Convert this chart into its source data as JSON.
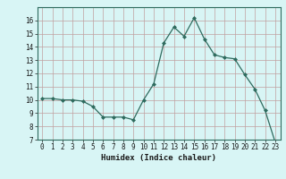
{
  "x": [
    0,
    1,
    2,
    3,
    4,
    5,
    6,
    7,
    8,
    9,
    10,
    11,
    12,
    13,
    14,
    15,
    16,
    17,
    18,
    19,
    20,
    21,
    22,
    23
  ],
  "y": [
    10.1,
    10.1,
    10.0,
    10.0,
    9.9,
    9.5,
    8.7,
    8.7,
    8.7,
    8.5,
    10.0,
    11.2,
    14.3,
    15.5,
    14.8,
    16.2,
    14.6,
    13.4,
    13.2,
    13.1,
    11.9,
    10.8,
    9.2,
    6.8
  ],
  "xlim": [
    -0.5,
    23.5
  ],
  "ylim": [
    7,
    17
  ],
  "yticks": [
    7,
    8,
    9,
    10,
    11,
    12,
    13,
    14,
    15,
    16
  ],
  "xticks": [
    0,
    1,
    2,
    3,
    4,
    5,
    6,
    7,
    8,
    9,
    10,
    11,
    12,
    13,
    14,
    15,
    16,
    17,
    18,
    19,
    20,
    21,
    22,
    23
  ],
  "xlabel": "Humidex (Indice chaleur)",
  "line_color": "#2e6b5e",
  "marker": "D",
  "marker_size": 2.0,
  "bg_color": "#d8f5f5",
  "grid_color": "#c0a0a0",
  "tick_font_size": 5.5,
  "xlabel_font_size": 6.5
}
